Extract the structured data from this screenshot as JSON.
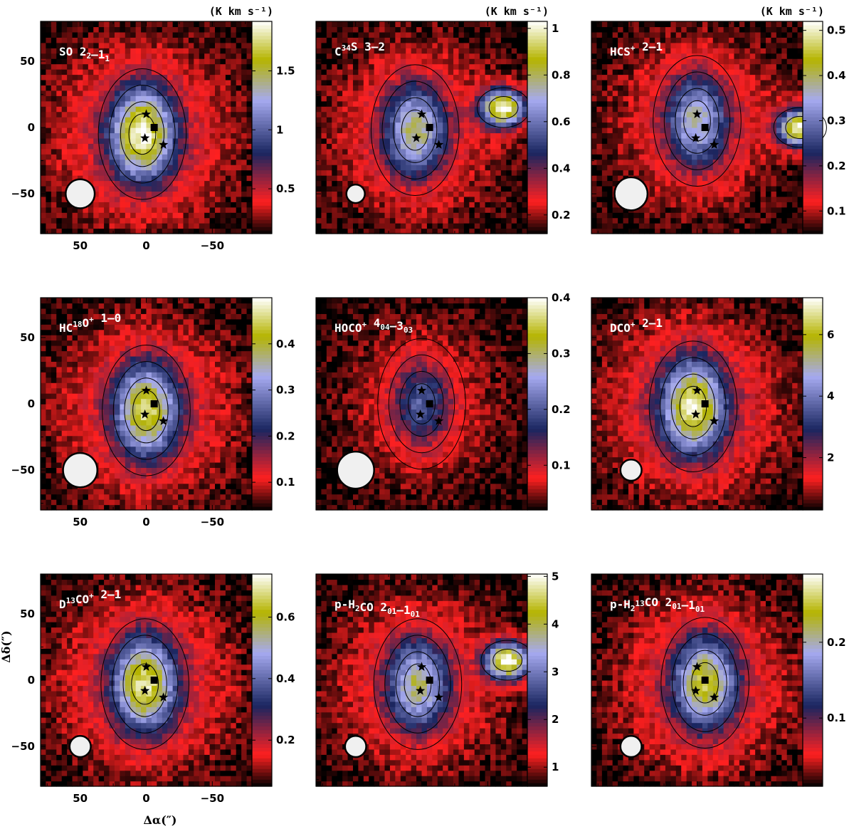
{
  "figure": {
    "x_axis_label": "Δα(″)",
    "y_axis_label": "Δδ(″)",
    "colormap": [
      "#000000",
      "#ff2020",
      "#1a2660",
      "#a6aaf0",
      "#b5b400",
      "#ffffff"
    ]
  },
  "chart_data": [
    {
      "type": "heatmap",
      "title": "SO 2_2–1_1",
      "title_parts": [
        [
          "SO 2",
          ""
        ],
        [
          "2",
          "s"
        ],
        [
          "–1",
          ""
        ],
        [
          "1",
          "s"
        ]
      ],
      "unit_label": "(K km s⁻¹)",
      "colorbar_range": [
        0.12,
        1.92
      ],
      "colorbar_ticks": [
        0.5,
        1,
        1.5
      ],
      "xlim": [
        80,
        -80
      ],
      "ylim": [
        -80,
        80
      ],
      "xticks": [
        50,
        0,
        -50
      ],
      "yticks": [
        50,
        0,
        -50
      ],
      "beam_diameter": 22,
      "peak": 1.9,
      "peak_offset": [
        3,
        -5
      ],
      "secondary_peak": null,
      "stars": [
        [
          0,
          10
        ],
        [
          1,
          -8
        ],
        [
          -13,
          -13
        ]
      ],
      "square": [
        -6,
        0
      ]
    },
    {
      "type": "heatmap",
      "title": "C³⁴S 3–2",
      "title_parts": [
        [
          "C",
          ""
        ],
        [
          "34",
          "S"
        ],
        [
          "S 3–2",
          ""
        ]
      ],
      "unit_label": "(K km s⁻¹)",
      "colorbar_range": [
        0.12,
        1.03
      ],
      "colorbar_ticks": [
        0.2,
        0.4,
        0.6,
        0.8,
        1
      ],
      "xlim": [
        80,
        -80
      ],
      "ylim": [
        -80,
        80
      ],
      "xticks": [],
      "yticks": [],
      "beam_diameter": 14,
      "peak": 0.8,
      "peak_offset": [
        5,
        -2
      ],
      "secondary_peak": {
        "offset": [
          -62,
          15
        ],
        "value": 1.0
      },
      "stars": [
        [
          0,
          10
        ],
        [
          4,
          -8
        ],
        [
          -13,
          -13
        ]
      ],
      "square": [
        -6,
        0
      ]
    },
    {
      "type": "heatmap",
      "title": "HCS⁺ 2–1",
      "title_parts": [
        [
          "HCS",
          ""
        ],
        [
          "+",
          "S"
        ],
        [
          " 2–1",
          ""
        ]
      ],
      "unit_label": "(K km s⁻¹)",
      "colorbar_range": [
        0.05,
        0.52
      ],
      "colorbar_ticks": [
        0.1,
        0.2,
        0.3,
        0.4,
        0.5
      ],
      "xlim": [
        80,
        -80
      ],
      "ylim": [
        -80,
        80
      ],
      "xticks": [],
      "yticks": [],
      "beam_diameter": 25,
      "peak": 0.38,
      "peak_offset": [
        0,
        5
      ],
      "secondary_peak": {
        "offset": [
          -78,
          0
        ],
        "value": 0.5
      },
      "stars": [
        [
          0,
          10
        ],
        [
          1,
          -8
        ],
        [
          -13,
          -13
        ]
      ],
      "square": [
        -6,
        0
      ]
    },
    {
      "type": "heatmap",
      "title": "HC¹⁸O⁺ 1–0",
      "title_parts": [
        [
          "HC",
          ""
        ],
        [
          "18",
          "S"
        ],
        [
          "O",
          ""
        ],
        [
          "+",
          "S"
        ],
        [
          " 1–0",
          ""
        ]
      ],
      "unit_label": "",
      "colorbar_range": [
        0.04,
        0.5
      ],
      "colorbar_ticks": [
        0.1,
        0.2,
        0.3,
        0.4
      ],
      "xlim": [
        80,
        -80
      ],
      "ylim": [
        -80,
        80
      ],
      "xticks": [
        50,
        0,
        -50
      ],
      "yticks": [
        50,
        0,
        -50
      ],
      "beam_diameter": 26,
      "peak": 0.46,
      "peak_offset": [
        0,
        -5
      ],
      "secondary_peak": null,
      "stars": [
        [
          0,
          10
        ],
        [
          1,
          -8
        ],
        [
          -13,
          -13
        ]
      ],
      "square": [
        -6,
        0
      ]
    },
    {
      "type": "heatmap",
      "title": "HOCO⁺ 4_04–3_03",
      "title_parts": [
        [
          "HOCO",
          ""
        ],
        [
          "+",
          "S"
        ],
        [
          " 4",
          ""
        ],
        [
          "04",
          "s"
        ],
        [
          "–3",
          ""
        ],
        [
          "03",
          "s"
        ]
      ],
      "unit_label": "",
      "colorbar_range": [
        0.02,
        0.4
      ],
      "colorbar_ticks": [
        0.1,
        0.2,
        0.3,
        0.4
      ],
      "xlim": [
        80,
        -80
      ],
      "ylim": [
        -80,
        80
      ],
      "xticks": [],
      "yticks": [],
      "beam_diameter": 28,
      "peak": 0.2,
      "peak_offset": [
        0,
        0
      ],
      "secondary_peak": null,
      "stars": [
        [
          0,
          10
        ],
        [
          1,
          -8
        ],
        [
          -13,
          -13
        ]
      ],
      "square": [
        -6,
        0
      ]
    },
    {
      "type": "heatmap",
      "title": "DCO⁺ 2–1",
      "title_parts": [
        [
          "DCO",
          ""
        ],
        [
          "+",
          "S"
        ],
        [
          " 2–1",
          ""
        ]
      ],
      "unit_label": "",
      "colorbar_range": [
        0.3,
        7.2
      ],
      "colorbar_ticks": [
        2,
        4,
        6
      ],
      "xlim": [
        80,
        -80
      ],
      "ylim": [
        -80,
        80
      ],
      "xticks": [],
      "yticks": [],
      "beam_diameter": 16,
      "peak": 7,
      "peak_offset": [
        3,
        -2
      ],
      "secondary_peak": null,
      "stars": [
        [
          0,
          10
        ],
        [
          1,
          -8
        ],
        [
          -13,
          -13
        ]
      ],
      "square": [
        -6,
        0
      ]
    },
    {
      "type": "heatmap",
      "title": "D¹³CO⁺ 2–1",
      "title_parts": [
        [
          "D",
          ""
        ],
        [
          "13",
          "S"
        ],
        [
          "CO",
          ""
        ],
        [
          "+",
          "S"
        ],
        [
          " 2–1",
          ""
        ]
      ],
      "unit_label": "",
      "colorbar_range": [
        0.05,
        0.74
      ],
      "colorbar_ticks": [
        0.2,
        0.4,
        0.6
      ],
      "xlim": [
        80,
        -80
      ],
      "ylim": [
        -80,
        80
      ],
      "xticks": [
        50,
        0,
        -50
      ],
      "yticks": [
        50,
        0,
        -50
      ],
      "beam_diameter": 16,
      "peak": 0.7,
      "peak_offset": [
        1,
        -3
      ],
      "secondary_peak": null,
      "stars": [
        [
          0,
          10
        ],
        [
          1,
          -8
        ],
        [
          -13,
          -13
        ]
      ],
      "square": [
        -6,
        0
      ]
    },
    {
      "type": "heatmap",
      "title": "p-H₂CO 2_01–1_01",
      "title_parts": [
        [
          "p-H",
          ""
        ],
        [
          "2",
          "s"
        ],
        [
          "CO 2",
          ""
        ],
        [
          "01",
          "s"
        ],
        [
          "–1",
          ""
        ],
        [
          "01",
          "s"
        ]
      ],
      "unit_label": "",
      "colorbar_range": [
        0.6,
        5.05
      ],
      "colorbar_ticks": [
        1,
        2,
        3,
        4,
        5
      ],
      "xlim": [
        80,
        -80
      ],
      "ylim": [
        -80,
        80
      ],
      "xticks": [],
      "yticks": [],
      "beam_diameter": 16,
      "peak": 3.9,
      "peak_offset": [
        3,
        -3
      ],
      "secondary_peak": {
        "offset": [
          -65,
          15
        ],
        "value": 5.0
      },
      "stars": [
        [
          0,
          10
        ],
        [
          1,
          -8
        ],
        [
          -13,
          -13
        ]
      ],
      "square": [
        -6,
        0
      ]
    },
    {
      "type": "heatmap",
      "title": "p-H₂¹³CO 2_01–1_01",
      "title_parts": [
        [
          "p-H",
          ""
        ],
        [
          "2",
          "s"
        ],
        [
          "13",
          "S"
        ],
        [
          "CO 2",
          ""
        ],
        [
          "01",
          "s"
        ],
        [
          "–1",
          ""
        ],
        [
          "01",
          "s"
        ]
      ],
      "unit_label": "",
      "colorbar_range": [
        0.01,
        0.29
      ],
      "colorbar_ticks": [
        0.1,
        0.2
      ],
      "xlim": [
        80,
        -80
      ],
      "ylim": [
        -80,
        80
      ],
      "xticks": [],
      "yticks": [],
      "beam_diameter": 16,
      "peak": 0.25,
      "peak_offset": [
        -6,
        -2
      ],
      "secondary_peak": null,
      "stars": [
        [
          0,
          10
        ],
        [
          1,
          -8
        ],
        [
          -13,
          -13
        ]
      ],
      "square": [
        -6,
        0
      ]
    }
  ]
}
